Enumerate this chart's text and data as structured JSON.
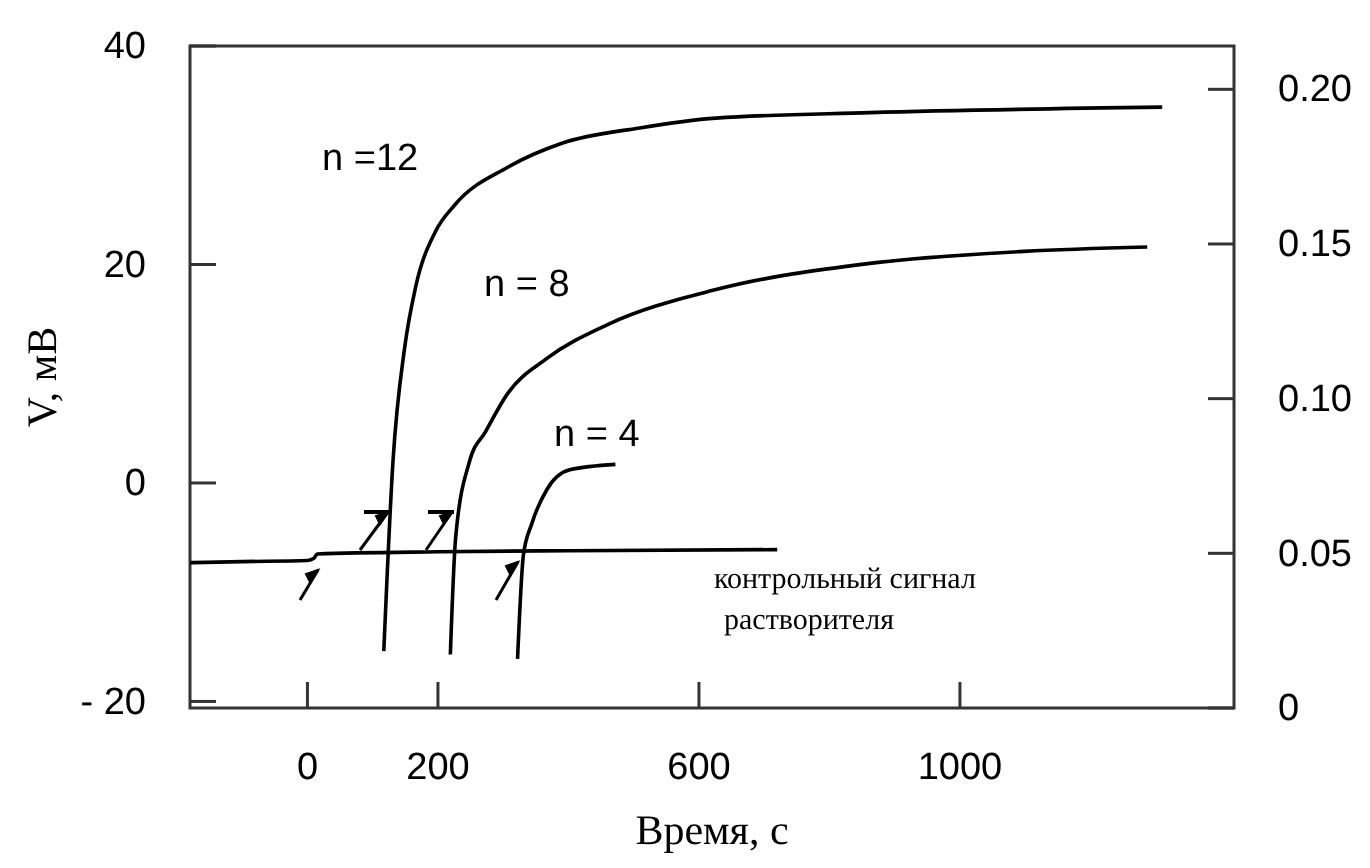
{
  "chart_data": {
    "type": "line",
    "xlabel": "Время, с",
    "ylabel": "V, мВ",
    "xlim": [
      -180,
      1420
    ],
    "xticks": [
      0,
      200,
      600,
      1000
    ],
    "ylim": [
      -20.6,
      40
    ],
    "yticks": [
      40,
      20,
      0,
      {
        "value": -20,
        "label": "- 20"
      }
    ],
    "y2lim": [
      0,
      0.214
    ],
    "y2ticks": [
      {
        "value": 0,
        "label": "0"
      },
      {
        "value": 0.05,
        "label": "0.05"
      },
      {
        "value": 0.1,
        "label": "0.10"
      },
      {
        "value": 0.15,
        "label": "0.15"
      },
      {
        "value": 0.2,
        "label": "0.20"
      }
    ],
    "grid": false,
    "marker": "none",
    "line_style": "solid",
    "series": [
      {
        "name": "n =12",
        "color": "#000000",
        "x": [
          117,
          131,
          149,
          166,
          196,
          225,
          307,
          390,
          509,
          626,
          862,
          1310
        ],
        "values": [
          -15.4,
          1.9,
          12.4,
          18,
          23,
          25.4,
          28.9,
          31.1,
          32.5,
          33.4,
          33.9,
          34.4
        ]
      },
      {
        "name": "n = 8",
        "color": "#000000",
        "x": [
          219,
          227,
          248,
          273,
          307,
          367,
          460,
          626,
          862,
          1098,
          1287
        ],
        "values": [
          -15.7,
          -5.1,
          1.9,
          4.7,
          8.2,
          11.4,
          14.5,
          17.7,
          20.1,
          21.2,
          21.6
        ]
      },
      {
        "name": "n = 4",
        "color": "#000000",
        "x": [
          322,
          331,
          344,
          367,
          402,
          472
        ],
        "values": [
          -16.1,
          -6.6,
          -3.7,
          -0.6,
          1.2,
          1.7
        ]
      },
      {
        "name": "контрольный сигнал\nрастворителя",
        "color": "#000000",
        "x": [
          -180,
          -100,
          0,
          10,
          15,
          200,
          400,
          720
        ],
        "values": [
          -7.3,
          -7.2,
          -7.1,
          -6.9,
          -6.5,
          -6.3,
          -6.2,
          -6.1
        ]
      }
    ]
  }
}
